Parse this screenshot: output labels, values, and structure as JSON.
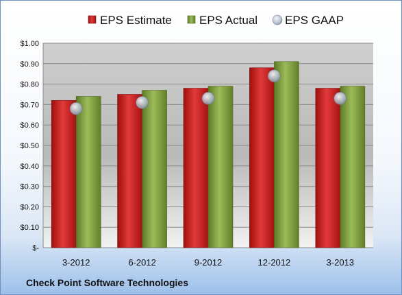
{
  "chart_data": {
    "type": "bar",
    "categories": [
      "3-2012",
      "6-2012",
      "9-2012",
      "12-2012",
      "3-2013"
    ],
    "series": [
      {
        "name": "EPS Estimate",
        "values": [
          0.72,
          0.75,
          0.78,
          0.88,
          0.78
        ],
        "color": "#cc1c1c"
      },
      {
        "name": "EPS Actual",
        "values": [
          0.74,
          0.77,
          0.79,
          0.91,
          0.79
        ],
        "color": "#7a9a3a"
      },
      {
        "name": "EPS GAAP",
        "values": [
          0.68,
          0.71,
          0.73,
          0.84,
          0.73
        ],
        "color": "#b8c4d4",
        "marker": "circle"
      }
    ],
    "ylim": [
      0,
      1.0
    ],
    "yticks": [
      0,
      0.1,
      0.2,
      0.3,
      0.4,
      0.5,
      0.6,
      0.7,
      0.8,
      0.9,
      1.0
    ],
    "ytick_labels": [
      "$-",
      "$0.10",
      "$0.20",
      "$0.30",
      "$0.40",
      "$0.50",
      "$0.60",
      "$0.70",
      "$0.80",
      "$0.90",
      "$1.00"
    ],
    "grid": true,
    "legend": "top"
  },
  "footer": {
    "company": "Check Point Software Technologies"
  }
}
